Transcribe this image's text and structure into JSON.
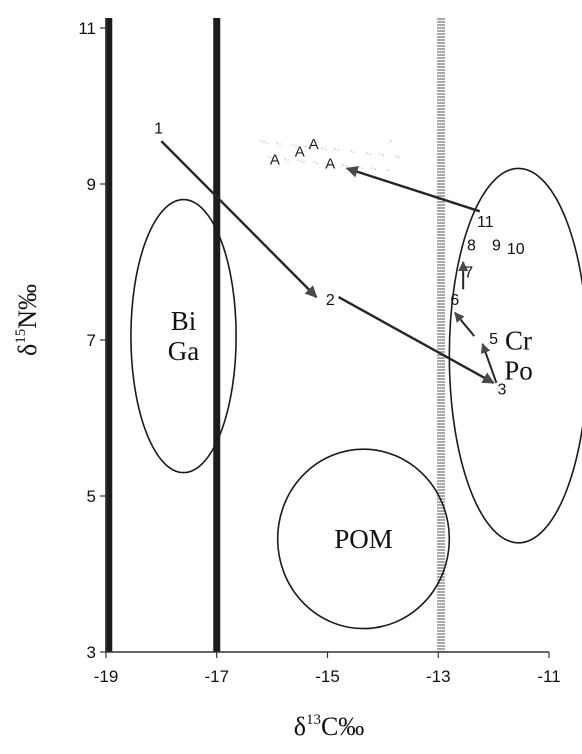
{
  "chart_data": {
    "type": "scatter",
    "title": "",
    "xlabel": {
      "base": "δ",
      "sup": "13",
      "rest": "C‰"
    },
    "ylabel": {
      "base": "δ",
      "sup": "15",
      "rest": "N‰"
    },
    "xlim": [
      -19,
      -11
    ],
    "ylim": [
      3,
      11
    ],
    "xticks": [
      -19,
      -17,
      -15,
      -13,
      -11
    ],
    "yticks": [
      3,
      5,
      7,
      9,
      11
    ],
    "xtick_labels": [
      "-19",
      "-17",
      "-15",
      "-13",
      "-11"
    ],
    "ytick_labels": [
      "3",
      "5",
      "7",
      "9",
      "11"
    ],
    "grid": false,
    "vertical_lines": [
      {
        "x": -18.95,
        "style": "thick-dark"
      },
      {
        "x": -17.0,
        "style": "thick-dark"
      },
      {
        "x": -12.95,
        "style": "stippled-grey"
      }
    ],
    "regions": [
      {
        "label_lines": [
          "Bi",
          "Ga"
        ],
        "cx": -17.6,
        "cy": 7.05,
        "rx": 0.95,
        "ry": 1.75
      },
      {
        "label_lines": [
          "Cr",
          "Po"
        ],
        "cx": -11.55,
        "cy": 6.8,
        "rx": 1.25,
        "ry": 2.4
      },
      {
        "label_lines": [
          "POM"
        ],
        "cx": -14.35,
        "cy": 4.45,
        "rx": 1.55,
        "ry": 1.15
      }
    ],
    "points": [
      {
        "label": "1",
        "x": -18.05,
        "y": 9.65
      },
      {
        "label": "2",
        "x": -14.95,
        "y": 7.45
      },
      {
        "label": "3",
        "x": -11.85,
        "y": 6.3
      },
      {
        "label": "5",
        "x": -12.0,
        "y": 6.95
      },
      {
        "label": "6",
        "x": -12.7,
        "y": 7.45
      },
      {
        "label": "7",
        "x": -12.45,
        "y": 7.8
      },
      {
        "label": "8",
        "x": -12.4,
        "y": 8.15
      },
      {
        "label": "9",
        "x": -11.95,
        "y": 8.15
      },
      {
        "label": "10",
        "x": -11.6,
        "y": 8.1
      },
      {
        "label": "11",
        "x": -12.15,
        "y": 8.45
      }
    ],
    "a_markers": [
      {
        "label": "A",
        "x": -15.95,
        "y": 9.25
      },
      {
        "label": "A",
        "x": -15.5,
        "y": 9.35
      },
      {
        "label": "A",
        "x": -15.25,
        "y": 9.45
      },
      {
        "label": "A",
        "x": -14.95,
        "y": 9.2
      }
    ],
    "arrows": [
      {
        "from": [
          -18.0,
          9.55
        ],
        "to": [
          -15.2,
          7.55
        ],
        "weight": "heavy"
      },
      {
        "from": [
          -14.8,
          7.55
        ],
        "to": [
          -12.0,
          6.45
        ],
        "weight": "heavy"
      },
      {
        "from": [
          -11.95,
          6.45
        ],
        "to": [
          -12.2,
          6.95
        ],
        "weight": "medium"
      },
      {
        "from": [
          -12.35,
          7.05
        ],
        "to": [
          -12.7,
          7.35
        ],
        "weight": "medium"
      },
      {
        "from": [
          -12.55,
          7.65
        ],
        "to": [
          -12.55,
          8.0
        ],
        "weight": "medium"
      },
      {
        "from": [
          -12.25,
          8.65
        ],
        "to": [
          -14.65,
          9.2
        ],
        "weight": "heavy"
      }
    ]
  }
}
